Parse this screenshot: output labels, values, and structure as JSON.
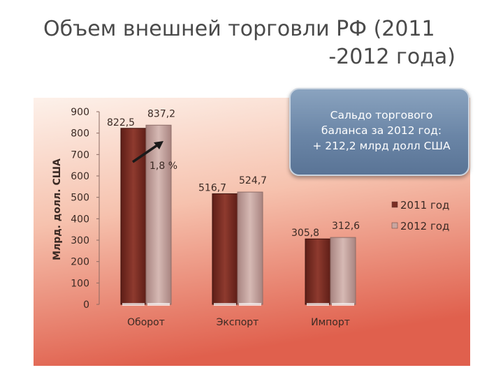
{
  "slide": {
    "title_line1": "Объем внешней торговли РФ (2011",
    "title_line2": "-2012 года)",
    "callout_text": "Сальдо торгового\nбаланса за 2012 год:\n+ 212,2 млрд долл США",
    "growth_annotation": "1,8 %",
    "colors": {
      "bg_top": "#fbe7dd",
      "bg_bottom": "#e05f4e",
      "series_2011": "#7a2e24",
      "series_2012": "#c9a6a0"
    }
  },
  "chart_data": {
    "type": "bar",
    "categories": [
      "Оборот",
      "Экспорт",
      "Импорт"
    ],
    "series": [
      {
        "name": "2011 год",
        "values": [
          822.5,
          516.7,
          305.8
        ],
        "labels": [
          "822,5",
          "516,7",
          "305,8"
        ]
      },
      {
        "name": "2012 год",
        "values": [
          837.2,
          524.7,
          312.6
        ],
        "labels": [
          "837,2",
          "524,7",
          "312,6"
        ]
      }
    ],
    "ylabel": "Млрд. долл. США",
    "xlabel": "",
    "ylim": [
      0,
      900
    ],
    "yticks": [
      0,
      100,
      200,
      300,
      400,
      500,
      600,
      700,
      800,
      900
    ],
    "legend_position": "right",
    "grid": false
  }
}
